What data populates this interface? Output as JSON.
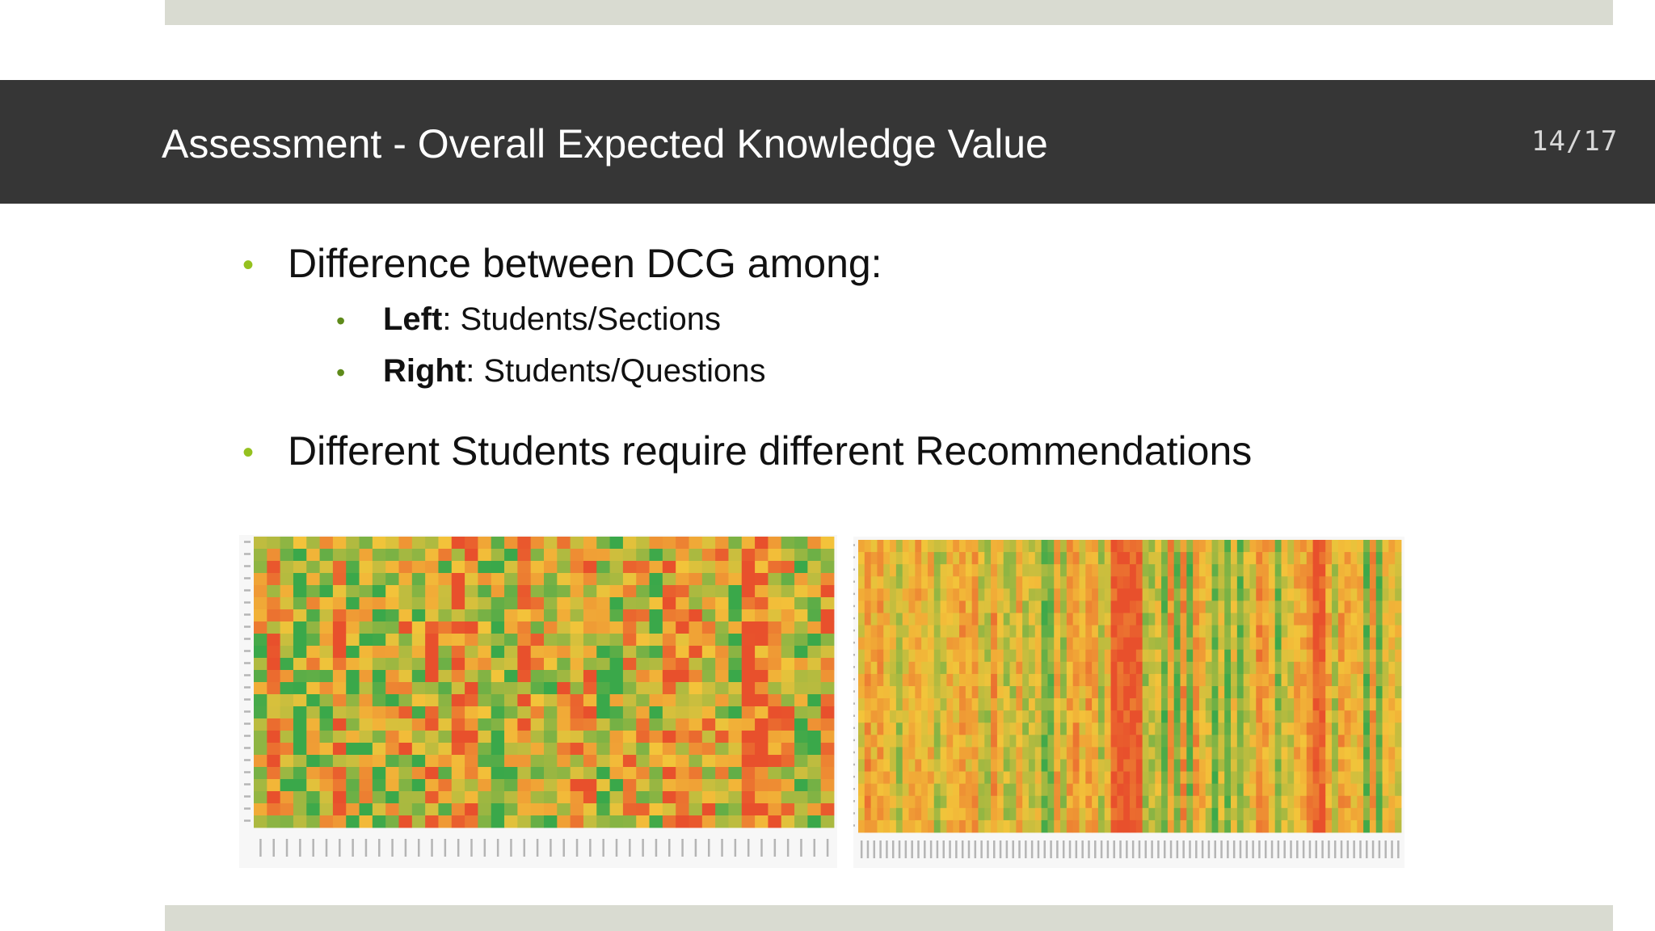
{
  "slide": {
    "title": "Assessment - Overall Expected Knowledge Value",
    "page_number": "14/17"
  },
  "bullets": [
    {
      "text": "Difference between DCG among:",
      "sub": [
        {
          "bold": "Left",
          "rest": ": Students/Sections"
        },
        {
          "bold": "Right",
          "rest": ": Students/Questions"
        }
      ]
    },
    {
      "text": "Different Students require different Recommendations",
      "sub": []
    }
  ],
  "colors": {
    "title_bar": "#363636",
    "band": "#d9dbd1",
    "bullet_l1": "#95c11f",
    "bullet_l2": "#5e8a1a",
    "heat_low": "#e8502c",
    "heat_mid": "#f3c43a",
    "heat_high": "#3aa84a"
  },
  "images": [
    {
      "icon": "heatmap-students-sections"
    },
    {
      "icon": "heatmap-students-questions"
    }
  ]
}
